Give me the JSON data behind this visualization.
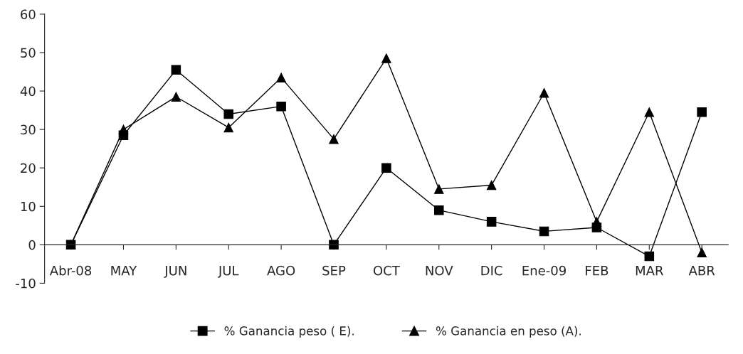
{
  "chart_data": {
    "type": "line",
    "categories": [
      "Abr-08",
      "MAY",
      "JUN",
      "JUL",
      "AGO",
      "SEP",
      "OCT",
      "NOV",
      "DIC",
      "Ene-09",
      "FEB",
      "MAR",
      "ABR"
    ],
    "series": [
      {
        "name": "% Ganancia peso ( E).",
        "color": "#000000",
        "marker": "square",
        "values": [
          0,
          28.5,
          45.5,
          34,
          36,
          0,
          20,
          9,
          6,
          3.5,
          4.5,
          -3,
          34.5
        ]
      },
      {
        "name": "% Ganancia en peso (A).",
        "color": "#000000",
        "marker": "triangle",
        "values": [
          0,
          30,
          38.5,
          30.5,
          43.5,
          27.5,
          48.5,
          14.5,
          15.5,
          39.5,
          6,
          34.5,
          -2
        ]
      }
    ],
    "ylim": [
      -10,
      60
    ],
    "yticks": [
      -10,
      0,
      10,
      20,
      30,
      40,
      50,
      60
    ],
    "grid": false,
    "legend": "bottom",
    "line_style": "solid"
  }
}
